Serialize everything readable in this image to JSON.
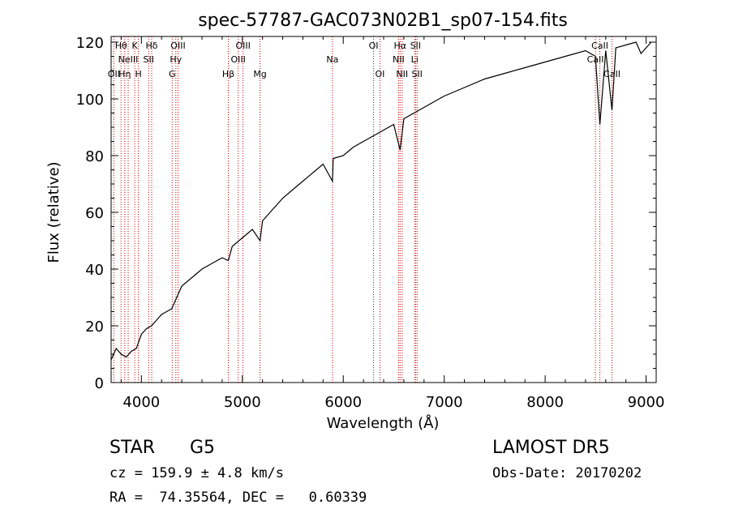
{
  "chart_data": {
    "type": "line",
    "title": "spec-57787-GAC073N02B1_sp07-154.fits",
    "xlabel": "Wavelength (Å)",
    "ylabel": "Flux (relative)",
    "xlim": [
      3700,
      9100
    ],
    "ylim": [
      0,
      122
    ],
    "x_ticks": [
      4000,
      5000,
      6000,
      7000,
      8000,
      9000
    ],
    "y_ticks": [
      0,
      20,
      40,
      60,
      80,
      100,
      120
    ],
    "grid": false,
    "line_color": "#000000",
    "marker_color": "#cc0000",
    "series": [
      {
        "x": [
          3700,
          3750,
          3800,
          3850,
          3900,
          3950,
          4000,
          4050,
          4100,
          4150,
          4200,
          4250,
          4300,
          4350,
          4400,
          4500,
          4600,
          4700,
          4800,
          4861,
          4900,
          5000,
          5100,
          5175,
          5200,
          5300,
          5400,
          5500,
          5600,
          5700,
          5800,
          5893,
          5900,
          6000,
          6100,
          6200,
          6300,
          6400,
          6500,
          6563,
          6600,
          6700,
          6800,
          6900,
          7000,
          7200,
          7400,
          7600,
          7800,
          8000,
          8200,
          8400,
          8498,
          8542,
          8600,
          8662,
          8700,
          8800,
          8900,
          8950,
          9000,
          9050
        ],
        "y": [
          8,
          12,
          10,
          9,
          11,
          12,
          17,
          19,
          20,
          22,
          24,
          25,
          26,
          30,
          34,
          37,
          40,
          42,
          44,
          43,
          48,
          51,
          54,
          50,
          57,
          61,
          65,
          68,
          71,
          74,
          77,
          71,
          79,
          80,
          83,
          85,
          87,
          89,
          91,
          82,
          93,
          95,
          97,
          99,
          101,
          104,
          107,
          109,
          111,
          113,
          115,
          117,
          115,
          91,
          117,
          96,
          118,
          119,
          120,
          116,
          118,
          120
        ]
      }
    ],
    "line_markers": [
      {
        "wl": 3727,
        "label": "OII",
        "row": 3
      },
      {
        "wl": 3798,
        "label": "Hθ",
        "row": 1
      },
      {
        "wl": 3835,
        "label": "Hη",
        "row": 3
      },
      {
        "wl": 3869,
        "label": "NeIII",
        "row": 2
      },
      {
        "wl": 3934,
        "label": "K",
        "row": 1
      },
      {
        "wl": 3970,
        "label": "H",
        "row": 3
      },
      {
        "wl": 4072,
        "label": "SII",
        "row": 2
      },
      {
        "wl": 4102,
        "label": "Hδ",
        "row": 1
      },
      {
        "wl": 4305,
        "label": "G",
        "row": 3
      },
      {
        "wl": 4341,
        "label": "Hγ",
        "row": 2
      },
      {
        "wl": 4363,
        "label": "OIII",
        "row": 1
      },
      {
        "wl": 4861,
        "label": "Hβ",
        "row": 3
      },
      {
        "wl": 4959,
        "label": "OIII",
        "row": 2
      },
      {
        "wl": 5007,
        "label": "OIII",
        "row": 1
      },
      {
        "wl": 5175,
        "label": "Mg",
        "row": 3
      },
      {
        "wl": 5893,
        "label": "Na",
        "row": 2
      },
      {
        "wl": 6300,
        "label": "OI",
        "row": 1
      },
      {
        "wl": 6363,
        "label": "OI",
        "row": 3
      },
      {
        "wl": 6548,
        "label": "NII",
        "row": 2
      },
      {
        "wl": 6563,
        "label": "Hα",
        "row": 1
      },
      {
        "wl": 6583,
        "label": "NII",
        "row": 3
      },
      {
        "wl": 6707,
        "label": "Li",
        "row": 2
      },
      {
        "wl": 6716,
        "label": "SII",
        "row": 1
      },
      {
        "wl": 6731,
        "label": "SII",
        "row": 3
      },
      {
        "wl": 8498,
        "label": "CaII",
        "row": 2
      },
      {
        "wl": 8542,
        "label": "CaII",
        "row": 1
      },
      {
        "wl": 8662,
        "label": "CaII",
        "row": 3
      }
    ]
  },
  "info": {
    "object_class": "STAR",
    "subclass": "G5",
    "survey": "LAMOST DR5",
    "redshift": "cz = 159.9 ± 4.8 km/s",
    "obs_date": "Obs-Date: 20170202",
    "coords": "RA =  74.35564, DEC =   0.60339"
  }
}
